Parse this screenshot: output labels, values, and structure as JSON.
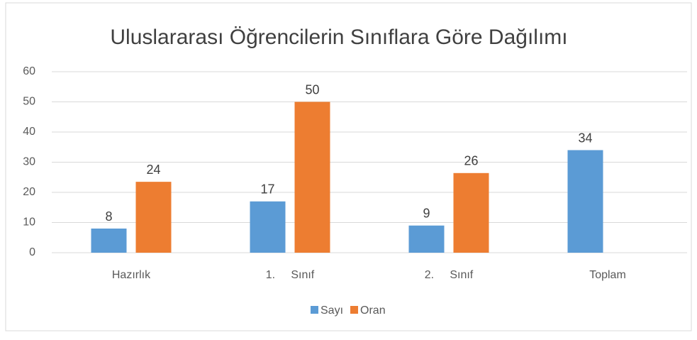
{
  "chart_data": {
    "type": "bar",
    "title": "Uluslararası Öğrencilerin Sınıflara Göre Dağılımı",
    "categories": [
      "Hazırlık",
      "1.     Sınıf",
      "2.     Sınıf",
      "Toplam"
    ],
    "series": [
      {
        "name": "Sayı",
        "color": "#5b9bd5",
        "values": [
          8,
          17,
          9,
          34
        ],
        "value_labels": [
          "8",
          "17",
          "9",
          "34"
        ]
      },
      {
        "name": "Oran",
        "color": "#ed7d31",
        "values": [
          23.5,
          50,
          26.4,
          null
        ],
        "value_labels": [
          "24",
          "50",
          "26",
          null
        ]
      }
    ],
    "ylim": [
      0,
      60
    ],
    "yticks": [
      0,
      10,
      20,
      30,
      40,
      50,
      60
    ],
    "grid": true,
    "legend": "bottom"
  }
}
